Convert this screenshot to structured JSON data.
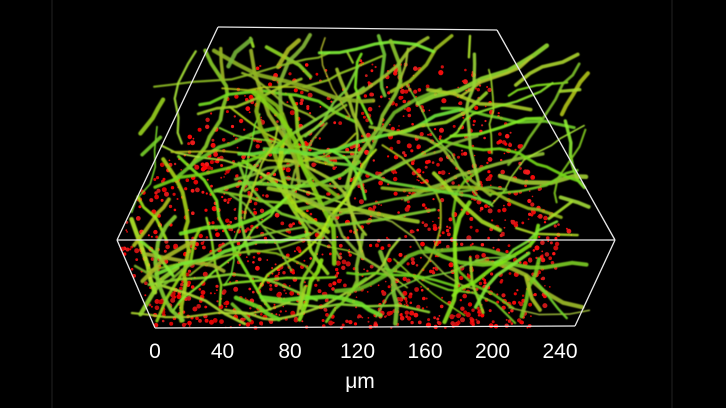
{
  "axis": {
    "ticks": [
      0,
      40,
      80,
      120,
      160,
      200,
      240
    ],
    "unit": "μm"
  }
}
